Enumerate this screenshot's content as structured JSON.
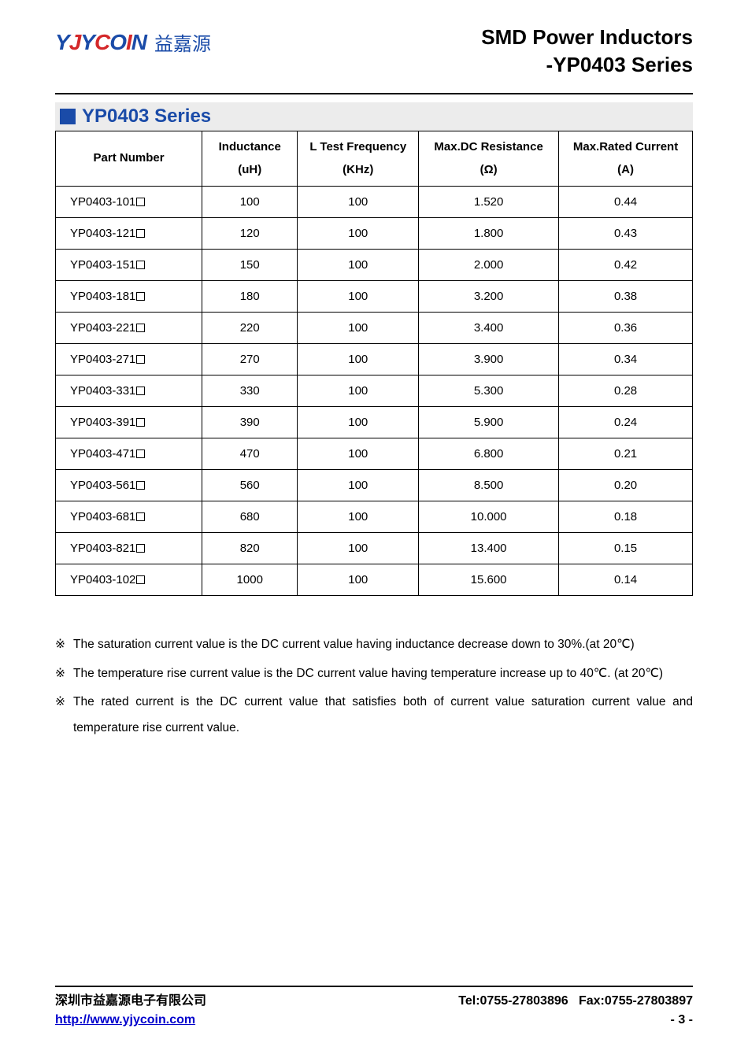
{
  "header": {
    "logo_latin_parts": [
      {
        "t": "Y",
        "c": "blue"
      },
      {
        "t": "J",
        "c": "red"
      },
      {
        "t": "Y",
        "c": "blue"
      },
      {
        "t": "C",
        "c": "red"
      },
      {
        "t": "O",
        "c": "blue"
      },
      {
        "t": "I",
        "c": "red"
      },
      {
        "t": "N",
        "c": "blue"
      }
    ],
    "logo_cn": "益嘉源",
    "title_line1": "SMD Power Inductors",
    "title_line2": "-YP0403 Series"
  },
  "section": {
    "title": "YP0403 Series"
  },
  "table": {
    "columns": [
      {
        "line1": "Part Number",
        "line2": "",
        "width": "23%",
        "align": "left"
      },
      {
        "line1": "Inductance",
        "line2": "(uH)",
        "width": "15%",
        "align": "center"
      },
      {
        "line1": "L Test Frequency",
        "line2": "(KHz)",
        "width": "19%",
        "align": "center"
      },
      {
        "line1": "Max.DC Resistance",
        "line2": "(Ω)",
        "width": "22%",
        "align": "center"
      },
      {
        "line1": "Max.Rated Current",
        "line2": "(A)",
        "width": "21%",
        "align": "center"
      }
    ],
    "rows": [
      {
        "pn": "YP0403-101",
        "ind": "100",
        "freq": "100",
        "dcr": "1.520",
        "cur": "0.44"
      },
      {
        "pn": "YP0403-121",
        "ind": "120",
        "freq": "100",
        "dcr": "1.800",
        "cur": "0.43"
      },
      {
        "pn": "YP0403-151",
        "ind": "150",
        "freq": "100",
        "dcr": "2.000",
        "cur": "0.42"
      },
      {
        "pn": "YP0403-181",
        "ind": "180",
        "freq": "100",
        "dcr": "3.200",
        "cur": "0.38"
      },
      {
        "pn": "YP0403-221",
        "ind": "220",
        "freq": "100",
        "dcr": "3.400",
        "cur": "0.36"
      },
      {
        "pn": "YP0403-271",
        "ind": "270",
        "freq": "100",
        "dcr": "3.900",
        "cur": "0.34"
      },
      {
        "pn": "YP0403-331",
        "ind": "330",
        "freq": "100",
        "dcr": "5.300",
        "cur": "0.28"
      },
      {
        "pn": "YP0403-391",
        "ind": "390",
        "freq": "100",
        "dcr": "5.900",
        "cur": "0.24"
      },
      {
        "pn": "YP0403-471",
        "ind": "470",
        "freq": "100",
        "dcr": "6.800",
        "cur": "0.21"
      },
      {
        "pn": "YP0403-561",
        "ind": "560",
        "freq": "100",
        "dcr": "8.500",
        "cur": "0.20"
      },
      {
        "pn": "YP0403-681",
        "ind": "680",
        "freq": "100",
        "dcr": "10.000",
        "cur": "0.18"
      },
      {
        "pn": "YP0403-821",
        "ind": "820",
        "freq": "100",
        "dcr": "13.400",
        "cur": "0.15"
      },
      {
        "pn": "YP0403-102",
        "ind": "1000",
        "freq": "100",
        "dcr": "15.600",
        "cur": "0.14"
      }
    ]
  },
  "notes": {
    "marker": "※",
    "items": [
      "The saturation current value is the DC current value having inductance decrease down to 30%.(at 20℃)",
      "The temperature rise current value is the DC current value having temperature increase up to 40℃. (at 20℃)",
      "The rated current is the DC current value that satisfies both of current value saturation current value and temperature rise current value."
    ]
  },
  "footer": {
    "company": "深圳市益嘉源电子有限公司",
    "url": "http://www.yjycoin.com",
    "tel_label": "Tel:",
    "tel": "0755-27803896",
    "fax_label": "Fax:",
    "fax": "0755-27803897",
    "page": "- 3 -"
  },
  "colors": {
    "brand_blue": "#1a4ba8",
    "brand_red": "#d4282a",
    "section_bg": "#ececec",
    "link": "#0000cc",
    "border": "#000000",
    "background": "#ffffff"
  }
}
